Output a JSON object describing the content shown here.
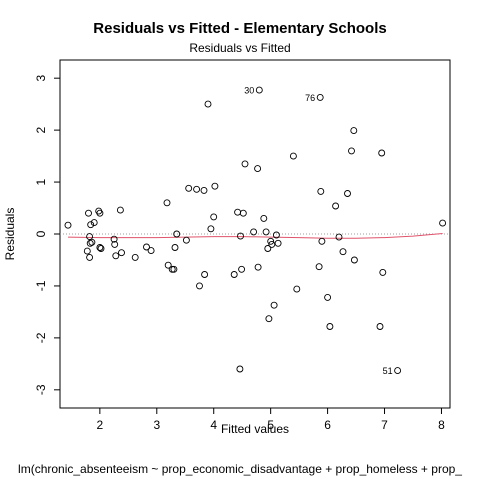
{
  "chart_data": {
    "type": "scatter",
    "title": "Residuals vs Fitted - Elementary Schools",
    "subtitle": "Residuals vs Fitted",
    "xlabel": "Fitted values",
    "ylabel": "Residuals",
    "caption": "lm(chronic_absenteeism ~ prop_economic_disadvantage + prop_homeless + prop_",
    "xlim": [
      1.3,
      8.15
    ],
    "ylim": [
      -3.35,
      3.35
    ],
    "x_ticks": [
      2,
      3,
      4,
      5,
      6,
      7,
      8
    ],
    "y_ticks": [
      -3,
      -2,
      -1,
      0,
      1,
      2,
      3
    ],
    "grid": false,
    "reference_line_y": 0,
    "smooth_color": "#DF536B",
    "points": [
      [
        1.44,
        0.17
      ],
      [
        1.78,
        -0.33
      ],
      [
        1.8,
        0.4
      ],
      [
        1.82,
        -0.45
      ],
      [
        1.82,
        -0.05
      ],
      [
        1.83,
        -0.18
      ],
      [
        1.84,
        0.18
      ],
      [
        1.86,
        -0.16
      ],
      [
        1.9,
        0.22
      ],
      [
        1.98,
        0.44
      ],
      [
        2.0,
        0.4
      ],
      [
        2.0,
        -0.26
      ],
      [
        2.02,
        -0.28
      ],
      [
        2.25,
        -0.1
      ],
      [
        2.26,
        -0.2
      ],
      [
        2.28,
        -0.42
      ],
      [
        2.36,
        0.46
      ],
      [
        2.38,
        -0.36
      ],
      [
        2.62,
        -0.45
      ],
      [
        2.82,
        -0.25
      ],
      [
        2.9,
        -0.32
      ],
      [
        3.18,
        0.6
      ],
      [
        3.2,
        -0.6
      ],
      [
        3.27,
        -0.68
      ],
      [
        3.3,
        -0.68
      ],
      [
        3.35,
        0.0
      ],
      [
        3.32,
        -0.26
      ],
      [
        3.52,
        -0.12
      ],
      [
        3.56,
        0.88
      ],
      [
        3.7,
        0.86
      ],
      [
        3.75,
        -1.0
      ],
      [
        3.83,
        0.84
      ],
      [
        3.84,
        -0.78
      ],
      [
        3.9,
        2.5
      ],
      [
        3.95,
        0.1
      ],
      [
        4.0,
        0.33
      ],
      [
        4.02,
        0.92
      ],
      [
        4.36,
        -0.78
      ],
      [
        4.42,
        0.42
      ],
      [
        4.46,
        -2.6
      ],
      [
        4.47,
        -0.04
      ],
      [
        4.49,
        -0.68
      ],
      [
        4.52,
        0.4
      ],
      [
        4.55,
        1.35
      ],
      [
        4.7,
        0.04
      ],
      [
        4.77,
        1.26
      ],
      [
        4.78,
        -0.64
      ],
      [
        4.8,
        2.77
      ],
      [
        4.88,
        0.3
      ],
      [
        4.92,
        0.04
      ],
      [
        4.95,
        -0.28
      ],
      [
        4.97,
        -1.63
      ],
      [
        5.0,
        -0.14
      ],
      [
        5.02,
        -0.2
      ],
      [
        5.06,
        -1.37
      ],
      [
        5.1,
        -0.02
      ],
      [
        5.13,
        -0.18
      ],
      [
        5.4,
        1.5
      ],
      [
        5.46,
        -1.06
      ],
      [
        5.85,
        -0.63
      ],
      [
        5.87,
        2.63
      ],
      [
        5.88,
        0.82
      ],
      [
        5.9,
        -0.14
      ],
      [
        6.0,
        -1.22
      ],
      [
        6.04,
        -1.78
      ],
      [
        6.14,
        0.54
      ],
      [
        6.2,
        -0.06
      ],
      [
        6.27,
        -0.34
      ],
      [
        6.35,
        0.78
      ],
      [
        6.42,
        1.6
      ],
      [
        6.46,
        1.99
      ],
      [
        6.47,
        -0.5
      ],
      [
        6.92,
        -1.78
      ],
      [
        6.95,
        1.56
      ],
      [
        6.97,
        -0.74
      ],
      [
        7.23,
        -2.63
      ],
      [
        8.02,
        0.21
      ]
    ],
    "labeled_points": [
      {
        "label": "30",
        "x": 4.8,
        "y": 2.77
      },
      {
        "label": "76",
        "x": 5.87,
        "y": 2.63
      },
      {
        "label": "51",
        "x": 7.23,
        "y": -2.63
      }
    ],
    "smooth": [
      [
        1.44,
        -0.06
      ],
      [
        2.0,
        -0.07
      ],
      [
        2.5,
        -0.07
      ],
      [
        3.0,
        -0.07
      ],
      [
        3.5,
        -0.06
      ],
      [
        4.0,
        -0.05
      ],
      [
        4.5,
        -0.05
      ],
      [
        5.0,
        -0.06
      ],
      [
        5.5,
        -0.07
      ],
      [
        6.0,
        -0.08
      ],
      [
        6.5,
        -0.08
      ],
      [
        7.0,
        -0.07
      ],
      [
        7.5,
        -0.04
      ],
      [
        8.02,
        0.01
      ]
    ]
  }
}
